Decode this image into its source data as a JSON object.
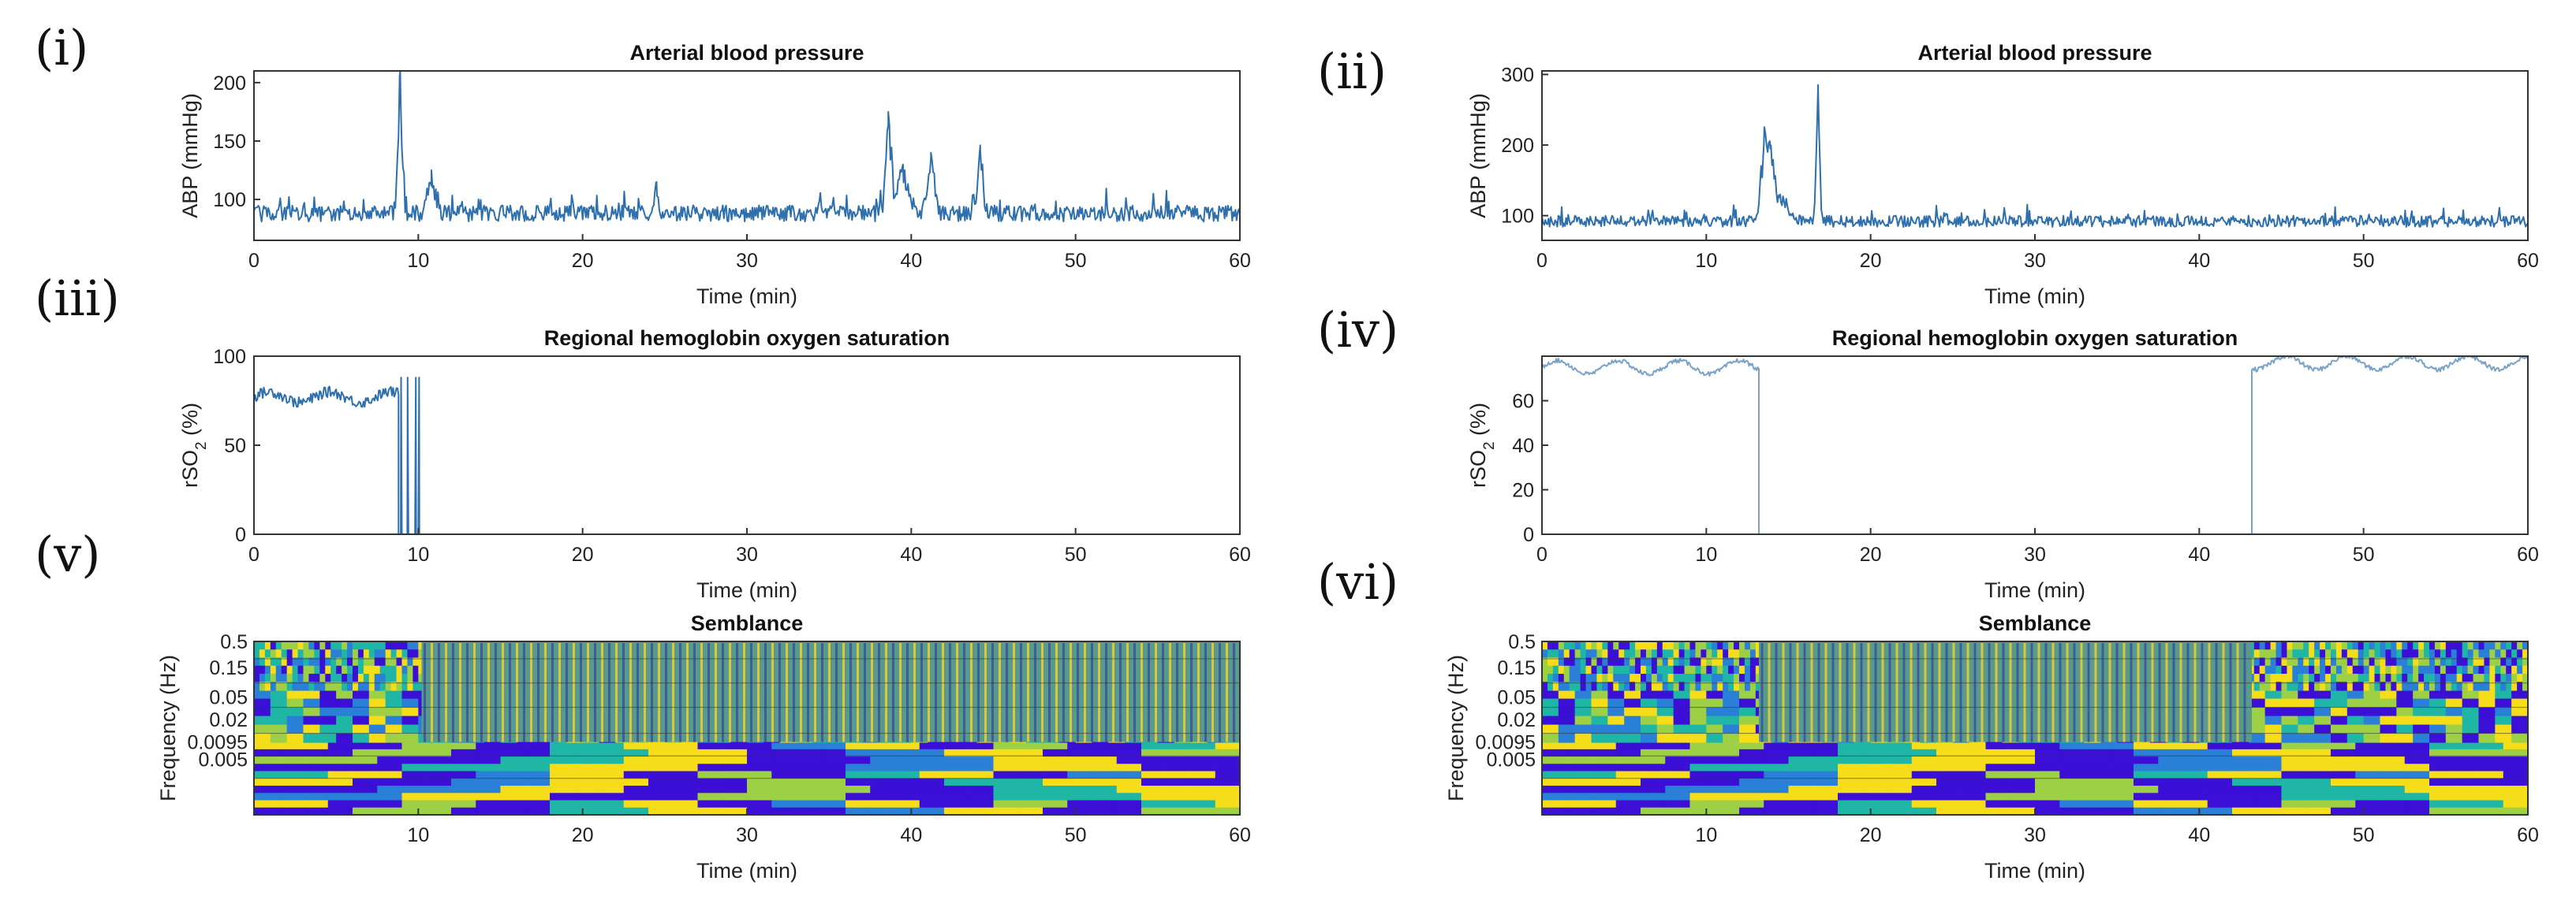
{
  "panel_labels": [
    "(i)",
    "(ii)",
    "(iii)",
    "(iv)",
    "(v)",
    "(vi)"
  ],
  "chart_data": [
    {
      "id": "i",
      "type": "line",
      "title": "Arterial blood pressure",
      "xlabel": "Time (min)",
      "ylabel": "ABP (mmHg)",
      "xlim": [
        0,
        60
      ],
      "ylim": [
        65,
        210
      ],
      "xticks": [
        0,
        10,
        20,
        30,
        40,
        50,
        60
      ],
      "yticks": [
        100,
        150,
        200
      ],
      "color": "#2e6fad",
      "baseline": 88,
      "noise": 7,
      "events": [
        [
          8.9,
          210,
          0.35
        ],
        [
          10.8,
          125,
          0.6
        ],
        [
          38.6,
          175,
          0.4
        ],
        [
          41.2,
          140,
          0.5
        ],
        [
          44.2,
          143,
          0.4
        ],
        [
          39.5,
          130,
          1.0
        ],
        [
          24.5,
          115,
          0.3
        ]
      ]
    },
    {
      "id": "ii",
      "type": "line",
      "title": "Arterial blood pressure",
      "xlabel": "Time (min)",
      "ylabel": "ABP (mmHg)",
      "xlim": [
        0,
        60
      ],
      "ylim": [
        65,
        305
      ],
      "xticks": [
        0,
        10,
        20,
        30,
        40,
        50,
        60
      ],
      "yticks": [
        100,
        200,
        300
      ],
      "color": "#2e6fad",
      "baseline": 92,
      "noise": 8,
      "events": [
        [
          13.5,
          200,
          0.5
        ],
        [
          13.9,
          195,
          0.5
        ],
        [
          16.8,
          285,
          0.25
        ],
        [
          14.5,
          130,
          1.2
        ]
      ]
    },
    {
      "id": "iii",
      "type": "line",
      "title": "Regional hemoglobin oxygen saturation",
      "xlabel": "Time (min)",
      "ylabel": "rSO2 (%)",
      "xlim": [
        0,
        60
      ],
      "ylim": [
        0,
        100
      ],
      "xticks": [
        0,
        10,
        20,
        30,
        40,
        50,
        60
      ],
      "yticks": [
        0,
        50,
        100
      ],
      "color": "#2e6fad",
      "segments": [
        {
          "x0": 0,
          "x1": 8.8,
          "value": 77,
          "noise": 3
        },
        {
          "x0": 8.8,
          "x1": 10.2,
          "value": 0,
          "noise": 0,
          "dropouts": [
            8.9,
            9.3,
            9.8,
            10.0
          ]
        },
        {
          "x0": 10.2,
          "x1": 60,
          "value": 0,
          "noise": 0
        }
      ]
    },
    {
      "id": "iv",
      "type": "line",
      "title": "Regional hemoglobin oxygen saturation",
      "xlabel": "Time (min)",
      "ylabel": "rSO2 (%)",
      "xlim": [
        0,
        60
      ],
      "ylim": [
        0,
        80
      ],
      "xticks": [
        0,
        10,
        20,
        30,
        40,
        50,
        60
      ],
      "yticks": [
        0,
        20,
        40,
        60
      ],
      "color": "#7aa3c7",
      "segments": [
        {
          "x0": 0,
          "x1": 13.2,
          "value": 75,
          "noise": 1
        },
        {
          "x0": 13.2,
          "x1": 43.2,
          "value": 0,
          "noise": 0
        },
        {
          "x0": 43.2,
          "x1": 60,
          "value": 77,
          "noise": 1
        }
      ]
    },
    {
      "id": "v",
      "type": "heatmap",
      "title": "Semblance",
      "xlabel": "Time (min)",
      "ylabel": "Frequency (Hz)",
      "xlim": [
        0,
        60
      ],
      "xticks": [
        10,
        20,
        30,
        40,
        50,
        60
      ],
      "yticks": [
        "0.5",
        "0.15",
        "0.05",
        "0.02",
        "0.0095",
        "0.005"
      ],
      "colormap": [
        "#3b0fd6",
        "#2a7fd6",
        "#1fb6a6",
        "#9ed045",
        "#f5dd1a"
      ],
      "invalid_interval": [
        10.2,
        60
      ]
    },
    {
      "id": "vi",
      "type": "heatmap",
      "title": "Semblance",
      "xlabel": "Time (min)",
      "ylabel": "Frequency (Hz)",
      "xlim": [
        0,
        60
      ],
      "xticks": [
        10,
        20,
        30,
        40,
        50,
        60
      ],
      "yticks": [
        "0.5",
        "0.15",
        "0.05",
        "0.02",
        "0.0095",
        "0.005"
      ],
      "colormap": [
        "#3b0fd6",
        "#2a7fd6",
        "#1fb6a6",
        "#9ed045",
        "#f5dd1a"
      ],
      "invalid_interval": [
        13.2,
        43.2
      ]
    }
  ]
}
